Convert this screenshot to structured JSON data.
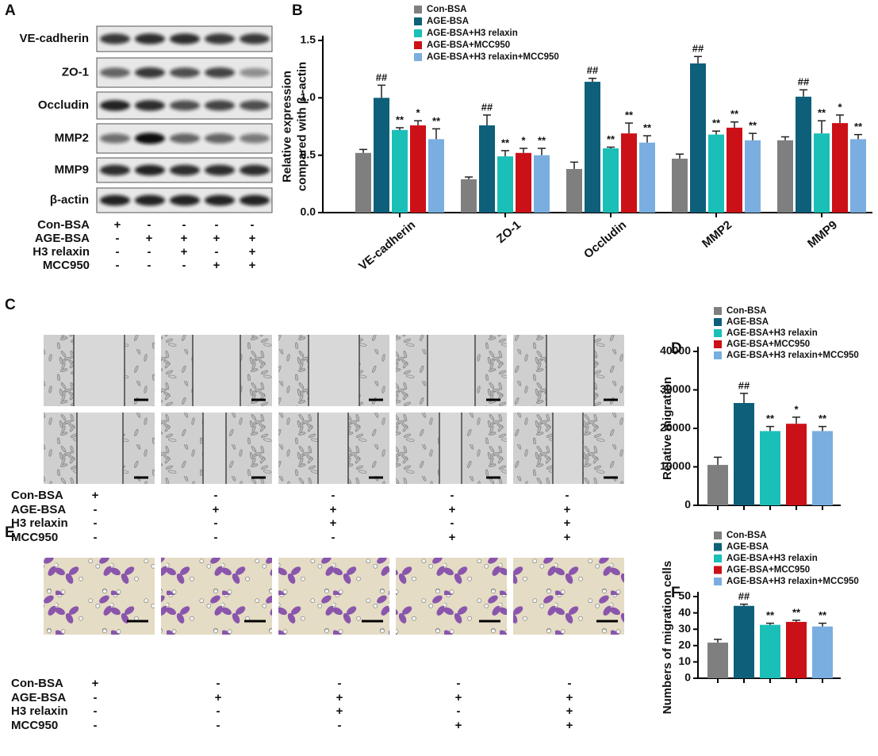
{
  "figure_a": {
    "panel": "A",
    "blot_rows": [
      "VE-cadherin",
      "ZO-1",
      "Occludin",
      "MMP2",
      "MMP9",
      "β-actin"
    ],
    "treatments": [
      {
        "label": "Con-BSA",
        "signs": [
          "+",
          "-",
          "-",
          "-",
          "-"
        ]
      },
      {
        "label": "AGE-BSA",
        "signs": [
          "-",
          "+",
          "+",
          "+",
          "+"
        ]
      },
      {
        "label": "H3 relaxin",
        "signs": [
          "-",
          "-",
          "+",
          "-",
          "+"
        ]
      },
      {
        "label": "MCC950",
        "signs": [
          "-",
          "-",
          "-",
          "+",
          "+"
        ]
      }
    ]
  },
  "figure_c": {
    "panel": "C",
    "treatments": [
      {
        "label": "Con-BSA",
        "signs": [
          "+",
          "-",
          "-",
          "-",
          "-"
        ]
      },
      {
        "label": "AGE-BSA",
        "signs": [
          "-",
          "+",
          "+",
          "+",
          "+"
        ]
      },
      {
        "label": "H3 relaxin",
        "signs": [
          "-",
          "-",
          "+",
          "-",
          "+"
        ]
      },
      {
        "label": "MCC950",
        "signs": [
          "-",
          "-",
          "-",
          "+",
          "+"
        ]
      }
    ]
  },
  "figure_e": {
    "panel": "E",
    "treatments": [
      {
        "label": "Con-BSA",
        "signs": [
          "+",
          "-",
          "-",
          "-",
          "-"
        ]
      },
      {
        "label": "AGE-BSA",
        "signs": [
          "-",
          "+",
          "+",
          "+",
          "+"
        ]
      },
      {
        "label": "H3 relaxin",
        "signs": [
          "-",
          "-",
          "+",
          "-",
          "+"
        ]
      },
      {
        "label": "MCC950",
        "signs": [
          "-",
          "-",
          "-",
          "+",
          "+"
        ]
      }
    ]
  },
  "chart_data": [
    {
      "type": "bar",
      "panel": "B",
      "ylabel": [
        "Relative expression",
        "compared with β -actin"
      ],
      "categories": [
        "VE-cadherin",
        "ZO-1",
        "Occludin",
        "MMP2",
        "MMP9"
      ],
      "ylim": [
        0,
        1.5
      ],
      "yticks": [
        {
          "value": 0,
          "label": "0.0"
        },
        0.5,
        {
          "value": 1,
          "label": "1.0"
        },
        1.5
      ],
      "series": [
        {
          "name": "Con-BSA",
          "color": "#7f7f7f",
          "values": [
            0.52,
            0.29,
            0.38,
            0.47,
            0.63
          ],
          "errors": [
            0.03,
            0.02,
            0.06,
            0.04,
            0.03
          ]
        },
        {
          "name": "AGE-BSA",
          "color": "#0d5f7a",
          "values": [
            1.0,
            0.76,
            1.14,
            1.3,
            1.01
          ],
          "errors": [
            0.11,
            0.09,
            0.03,
            0.06,
            0.06
          ],
          "annotations": [
            "##",
            "##",
            "##",
            "##",
            "##"
          ]
        },
        {
          "name": "AGE-BSA+H3 relaxin",
          "color": "#1abfb8",
          "values": [
            0.72,
            0.49,
            0.56,
            0.68,
            0.69
          ],
          "errors": [
            0.02,
            0.05,
            0.01,
            0.03,
            0.11
          ],
          "annotations": [
            "**",
            "**",
            "**",
            "**",
            "**"
          ]
        },
        {
          "name": "AGE-BSA+MCC950",
          "color": "#cc1018",
          "values": [
            0.76,
            0.52,
            0.69,
            0.74,
            0.78
          ],
          "errors": [
            0.04,
            0.04,
            0.09,
            0.05,
            0.07
          ],
          "annotations": [
            "*",
            "*",
            "**",
            "**",
            "*"
          ]
        },
        {
          "name": "AGE-BSA+H3 relaxin+MCC950",
          "color": "#7aaee0",
          "values": [
            0.64,
            0.5,
            0.61,
            0.63,
            0.64
          ],
          "errors": [
            0.09,
            0.06,
            0.06,
            0.06,
            0.04
          ],
          "annotations": [
            "**",
            "**",
            "**",
            "**",
            "**"
          ]
        }
      ]
    },
    {
      "type": "bar",
      "panel": "D",
      "ylabel": [
        "Relative migration"
      ],
      "ylim": [
        0,
        40000
      ],
      "yticks": [
        0,
        10000,
        20000,
        30000,
        40000
      ],
      "series": [
        {
          "name": "Con-BSA",
          "color": "#7f7f7f",
          "values": [
            10500
          ],
          "errors": [
            2000
          ]
        },
        {
          "name": "AGE-BSA",
          "color": "#0d5f7a",
          "values": [
            26600
          ],
          "errors": [
            2500
          ],
          "annotations": [
            "##"
          ]
        },
        {
          "name": "AGE-BSA+H3 relaxin",
          "color": "#1abfb8",
          "values": [
            19300
          ],
          "errors": [
            1200
          ],
          "annotations": [
            "**"
          ]
        },
        {
          "name": "AGE-BSA+MCC950",
          "color": "#cc1018",
          "values": [
            21200
          ],
          "errors": [
            1700
          ],
          "annotations": [
            "*"
          ]
        },
        {
          "name": "AGE-BSA+H3 relaxin+MCC950",
          "color": "#7aaee0",
          "values": [
            19300
          ],
          "errors": [
            1200
          ],
          "annotations": [
            "**"
          ]
        }
      ]
    },
    {
      "type": "bar",
      "panel": "F",
      "ylabel": [
        "Numbers of migration cells"
      ],
      "ylim": [
        0,
        50
      ],
      "yticks": [
        0,
        10,
        20,
        30,
        40,
        50
      ],
      "series": [
        {
          "name": "Con-BSA",
          "color": "#7f7f7f",
          "values": [
            21.8
          ],
          "errors": [
            2
          ]
        },
        {
          "name": "AGE-BSA",
          "color": "#0d5f7a",
          "values": [
            44.3
          ],
          "errors": [
            1
          ],
          "annotations": [
            "##"
          ]
        },
        {
          "name": "AGE-BSA+H3 relaxin",
          "color": "#1abfb8",
          "values": [
            32.7
          ],
          "errors": [
            1
          ],
          "annotations": [
            "**"
          ]
        },
        {
          "name": "AGE-BSA+MCC950",
          "color": "#cc1018",
          "values": [
            34.5
          ],
          "errors": [
            1
          ],
          "annotations": [
            "**"
          ]
        },
        {
          "name": "AGE-BSA+H3 relaxin+MCC950",
          "color": "#7aaee0",
          "values": [
            31.7
          ],
          "errors": [
            2
          ],
          "annotations": [
            "**"
          ]
        }
      ]
    }
  ]
}
